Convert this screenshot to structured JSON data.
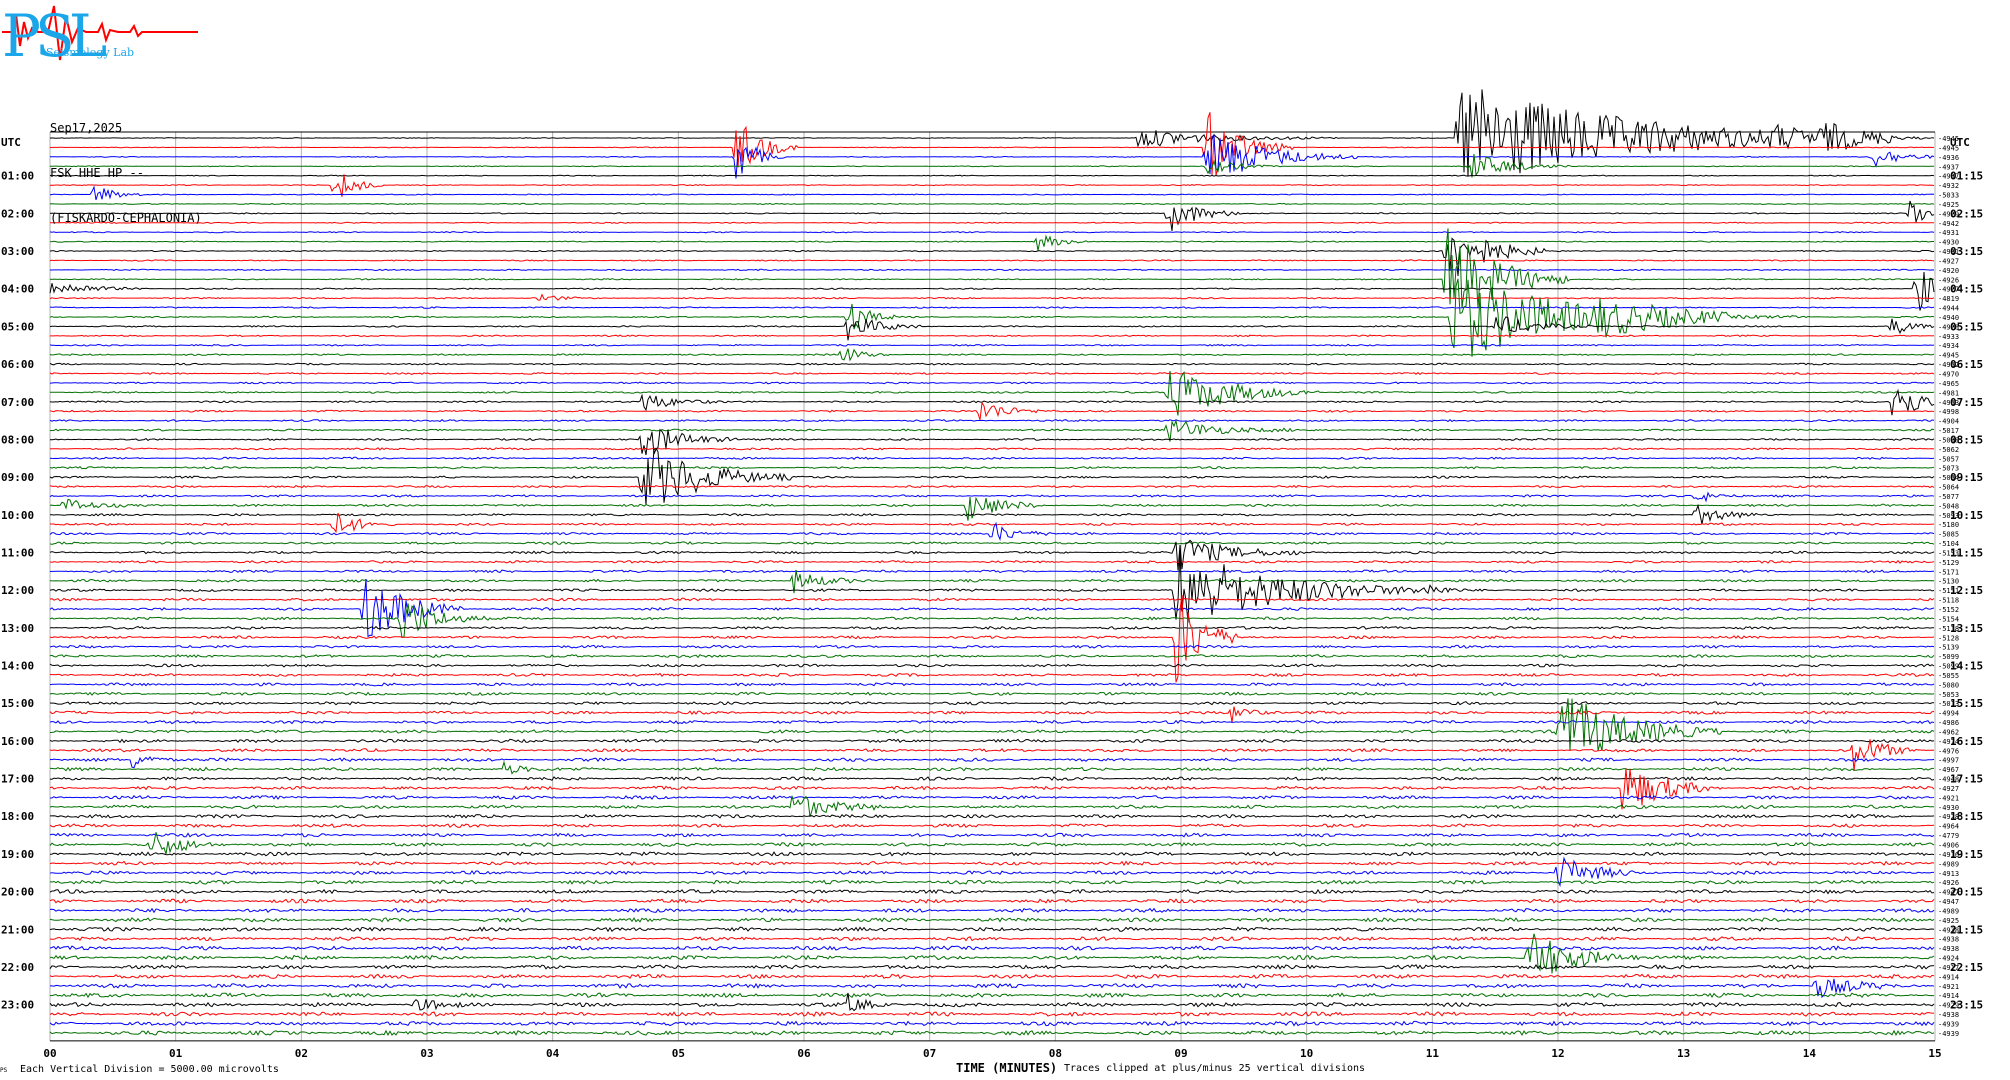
{
  "header": {
    "logo_text": "PSL",
    "logo_subtitle": "Seismology Lab",
    "date": "Sep17,2025",
    "channel": "FSK HHE HP --",
    "station": "(FISKARDO-CEPHALONIA)"
  },
  "footer": {
    "ps_mark": "PS",
    "division_note": "Each Vertical Division = 5000.00 microvolts",
    "clip_note": "Traces clipped at plus/minus 25 vertical divisions"
  },
  "colors": {
    "series": [
      "#000000",
      "#ff0000",
      "#0000ff",
      "#007000"
    ],
    "grid": "#b0b0b0",
    "logo": "#1aa6e8",
    "logo_trace": "#ff0000"
  },
  "chart_data": {
    "type": "line",
    "title": "",
    "xlabel": "TIME (MINUTES)",
    "ylabel": "",
    "xlim": [
      0,
      15
    ],
    "x_ticks": [
      "00",
      "01",
      "02",
      "03",
      "04",
      "05",
      "06",
      "07",
      "08",
      "09",
      "10",
      "11",
      "12",
      "13",
      "14",
      "15"
    ],
    "y_axis_left_title": "UTC",
    "y_axis_right_title": "UTC",
    "left_hour_labels": [
      "01:00",
      "02:00",
      "03:00",
      "04:00",
      "05:00",
      "06:00",
      "07:00",
      "08:00",
      "09:00",
      "10:00",
      "11:00",
      "12:00",
      "13:00",
      "14:00",
      "15:00",
      "16:00",
      "17:00",
      "18:00",
      "19:00",
      "20:00",
      "21:00",
      "22:00",
      "23:00"
    ],
    "right_hour_labels": [
      "01:15",
      "02:15",
      "03:15",
      "04:15",
      "05:15",
      "06:15",
      "07:15",
      "08:15",
      "09:15",
      "10:15",
      "11:15",
      "12:15",
      "13:15",
      "14:15",
      "15:15",
      "16:15",
      "17:15",
      "18:15",
      "19:15",
      "20:15",
      "21:15",
      "22:15",
      "23:15"
    ],
    "trace_count": 96,
    "trace_minutes": 15,
    "color_cycle": [
      "black",
      "red",
      "blue",
      "green"
    ],
    "trace_offsets": [
      "-4945",
      "-4945",
      "-4936",
      "-4937",
      "-4937",
      "-4932",
      "-5033",
      "-4925",
      "-4929",
      "-4942",
      "-4931",
      "-4930",
      "-4931",
      "-4927",
      "-4920",
      "-4926",
      "-4927",
      "-4819",
      "-4944",
      "-4940",
      "-4928",
      "-4933",
      "-4934",
      "-4945",
      "-4952",
      "-4970",
      "-4965",
      "-4981",
      "-4953",
      "-4998",
      "-4904",
      "-5017",
      "-5008",
      "-5062",
      "-5057",
      "-5073",
      "-5054",
      "-5064",
      "-5077",
      "-5048",
      "-5093",
      "-5180",
      "-5085",
      "-5104",
      "-5153",
      "-5129",
      "-5171",
      "-5130",
      "-5151",
      "-5118",
      "-5152",
      "-5154",
      "-5118",
      "-5128",
      "-5139",
      "-5099",
      "-5099",
      "-5055",
      "-5080",
      "-5053",
      "-5013",
      "-4994",
      "-4986",
      "-4962",
      "-4974",
      "-4976",
      "-4997",
      "-4967",
      "-4948",
      "-4927",
      "-4921",
      "-4930",
      "-4928",
      "-4964",
      "-4779",
      "-4906",
      "-4916",
      "-4989",
      "-4913",
      "-4926",
      "-4947",
      "-4947",
      "-4989",
      "-4925",
      "-4938",
      "-4938",
      "-4938",
      "-4924",
      "-4917",
      "-4914",
      "-4921",
      "-4914",
      "-4929",
      "-4938",
      "-4939",
      "-4939"
    ],
    "events": [
      {
        "trace": 0,
        "minute": 8.65,
        "amp": 10,
        "dur": 1.6
      },
      {
        "trace": 0,
        "minute": 11.2,
        "amp": 60,
        "dur": 3.5
      },
      {
        "trace": 0,
        "minute": 13.7,
        "amp": 8,
        "dur": 0.6
      },
      {
        "trace": 0,
        "minute": 14.1,
        "amp": 12,
        "dur": 0.8
      },
      {
        "trace": 1,
        "minute": 5.45,
        "amp": 35,
        "dur": 0.5
      },
      {
        "trace": 1,
        "minute": 9.2,
        "amp": 40,
        "dur": 0.7
      },
      {
        "trace": 2,
        "minute": 5.45,
        "amp": 30,
        "dur": 0.4
      },
      {
        "trace": 2,
        "minute": 9.2,
        "amp": 30,
        "dur": 1.2
      },
      {
        "trace": 2,
        "minute": 14.5,
        "amp": 12,
        "dur": 0.6
      },
      {
        "trace": 3,
        "minute": 9.2,
        "amp": 8,
        "dur": 0.6
      },
      {
        "trace": 3,
        "minute": 11.3,
        "amp": 15,
        "dur": 0.8
      },
      {
        "trace": 5,
        "minute": 2.25,
        "amp": 22,
        "dur": 0.4
      },
      {
        "trace": 6,
        "minute": 0.35,
        "amp": 12,
        "dur": 0.4
      },
      {
        "trace": 8,
        "minute": 8.9,
        "amp": 20,
        "dur": 0.6
      },
      {
        "trace": 8,
        "minute": 14.8,
        "amp": 20,
        "dur": 0.3
      },
      {
        "trace": 11,
        "minute": 7.85,
        "amp": 10,
        "dur": 0.4
      },
      {
        "trace": 12,
        "minute": 11.1,
        "amp": 40,
        "dur": 0.8
      },
      {
        "trace": 15,
        "minute": 11.1,
        "amp": 60,
        "dur": 1.0
      },
      {
        "trace": 16,
        "minute": 0.0,
        "amp": 8,
        "dur": 0.8
      },
      {
        "trace": 16,
        "minute": 14.85,
        "amp": 30,
        "dur": 0.4
      },
      {
        "trace": 17,
        "minute": 3.9,
        "amp": 6,
        "dur": 0.3
      },
      {
        "trace": 19,
        "minute": 6.35,
        "amp": 20,
        "dur": 0.4
      },
      {
        "trace": 19,
        "minute": 11.15,
        "amp": 50,
        "dur": 2.2
      },
      {
        "trace": 19,
        "minute": 12.3,
        "amp": 12,
        "dur": 1.6
      },
      {
        "trace": 20,
        "minute": 6.35,
        "amp": 14,
        "dur": 0.6
      },
      {
        "trace": 20,
        "minute": 11.5,
        "amp": 12,
        "dur": 0.8
      },
      {
        "trace": 20,
        "minute": 14.65,
        "amp": 10,
        "dur": 0.4
      },
      {
        "trace": 23,
        "minute": 6.3,
        "amp": 10,
        "dur": 0.4
      },
      {
        "trace": 27,
        "minute": 8.9,
        "amp": 30,
        "dur": 1.2
      },
      {
        "trace": 28,
        "minute": 4.7,
        "amp": 12,
        "dur": 0.6
      },
      {
        "trace": 28,
        "minute": 14.65,
        "amp": 30,
        "dur": 0.5
      },
      {
        "trace": 29,
        "minute": 7.4,
        "amp": 12,
        "dur": 0.6
      },
      {
        "trace": 31,
        "minute": 8.9,
        "amp": 12,
        "dur": 1.0
      },
      {
        "trace": 32,
        "minute": 4.7,
        "amp": 20,
        "dur": 0.8
      },
      {
        "trace": 36,
        "minute": 4.7,
        "amp": 40,
        "dur": 1.2
      },
      {
        "trace": 38,
        "minute": 13.1,
        "amp": 8,
        "dur": 0.4
      },
      {
        "trace": 39,
        "minute": 0.1,
        "amp": 10,
        "dur": 0.5
      },
      {
        "trace": 39,
        "minute": 7.3,
        "amp": 18,
        "dur": 0.6
      },
      {
        "trace": 40,
        "minute": 13.1,
        "amp": 12,
        "dur": 0.5
      },
      {
        "trace": 41,
        "minute": 2.25,
        "amp": 14,
        "dur": 0.5
      },
      {
        "trace": 42,
        "minute": 7.5,
        "amp": 12,
        "dur": 0.5
      },
      {
        "trace": 44,
        "minute": 8.95,
        "amp": 20,
        "dur": 1.0
      },
      {
        "trace": 47,
        "minute": 5.9,
        "amp": 14,
        "dur": 0.5
      },
      {
        "trace": 48,
        "minute": 8.95,
        "amp": 45,
        "dur": 2.0
      },
      {
        "trace": 48,
        "minute": 10.95,
        "amp": 8,
        "dur": 0.3
      },
      {
        "trace": 50,
        "minute": 2.5,
        "amp": 40,
        "dur": 0.8
      },
      {
        "trace": 51,
        "minute": 2.8,
        "amp": 25,
        "dur": 0.7
      },
      {
        "trace": 53,
        "minute": 8.95,
        "amp": 60,
        "dur": 0.5
      },
      {
        "trace": 61,
        "minute": 9.4,
        "amp": 10,
        "dur": 0.4
      },
      {
        "trace": 63,
        "minute": 12.0,
        "amp": 45,
        "dur": 1.3
      },
      {
        "trace": 65,
        "minute": 14.35,
        "amp": 22,
        "dur": 0.5
      },
      {
        "trace": 66,
        "minute": 0.65,
        "amp": 10,
        "dur": 0.4
      },
      {
        "trace": 67,
        "minute": 3.6,
        "amp": 8,
        "dur": 0.4
      },
      {
        "trace": 69,
        "minute": 12.5,
        "amp": 30,
        "dur": 0.8
      },
      {
        "trace": 71,
        "minute": 5.9,
        "amp": 18,
        "dur": 0.7
      },
      {
        "trace": 75,
        "minute": 0.8,
        "amp": 16,
        "dur": 0.6
      },
      {
        "trace": 78,
        "minute": 12.0,
        "amp": 20,
        "dur": 0.6
      },
      {
        "trace": 87,
        "minute": 11.75,
        "amp": 30,
        "dur": 0.9
      },
      {
        "trace": 90,
        "minute": 14.05,
        "amp": 14,
        "dur": 0.6
      },
      {
        "trace": 92,
        "minute": 6.35,
        "amp": 10,
        "dur": 0.4
      },
      {
        "trace": 92,
        "minute": 2.9,
        "amp": 8,
        "dur": 0.4
      }
    ]
  }
}
